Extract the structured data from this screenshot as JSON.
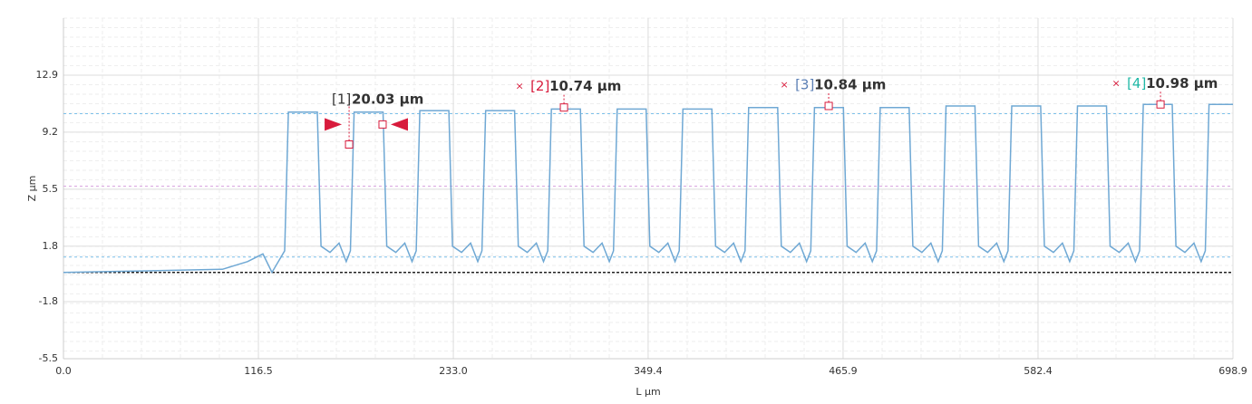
{
  "chart_data": {
    "type": "line",
    "xlabel": "L µm",
    "ylabel": "Z µm",
    "xlim": [
      0,
      698.9
    ],
    "ylim": [
      -5.5,
      16.6
    ],
    "xticks": [
      {
        "value": 0,
        "label": "0.0"
      },
      116.5,
      {
        "value": 233,
        "label": "233.0"
      },
      349.4,
      465.9,
      582.4,
      698.9
    ],
    "yticks": [
      -5.5,
      -1.8,
      1.8,
      5.5,
      9.2,
      12.9
    ],
    "grid": true,
    "series": [
      {
        "color": "#6fa8d4",
        "x": [
          0,
          50,
          95,
          110,
          119.2,
          124.6,
          132.2,
          134.4,
          151.7,
          153.9,
          159.3,
          164.7,
          169.0,
          171.5,
          173.7,
          191.0,
          193.2,
          198.6,
          204.0,
          208.3,
          210.8,
          213.0,
          230.3,
          232.5,
          237.9,
          243.3,
          247.6,
          250.1,
          252.3,
          269.6,
          271.8,
          277.2,
          282.6,
          286.9,
          289.4,
          291.6,
          308.9,
          311.1,
          316.5,
          321.9,
          326.2,
          328.7,
          330.9,
          348.2,
          350.4,
          355.8,
          361.2,
          365.5,
          368.0,
          370.2,
          387.5,
          389.7,
          395.1,
          400.5,
          404.8,
          407.3,
          409.5,
          426.8,
          429.0,
          434.4,
          439.8,
          444.1,
          446.6,
          448.8,
          466.1,
          468.3,
          473.7,
          479.1,
          483.4,
          485.9,
          488.1,
          505.4,
          507.6,
          513.0,
          518.4,
          522.7,
          525.2,
          527.4,
          544.7,
          546.9,
          552.3,
          557.7,
          562.0,
          564.5,
          566.7,
          584.0,
          586.2,
          591.6,
          597.0,
          601.3,
          603.8,
          606.0,
          623.3,
          625.5,
          630.9,
          636.3,
          640.6,
          643.1,
          645.3,
          662.6,
          664.8,
          670.2,
          675.6,
          679.9,
          682.4,
          684.6,
          698.9
        ],
        "values": [
          0.1,
          0.2,
          0.3,
          0.8,
          1.3,
          0.1,
          1.5,
          10.5,
          10.5,
          1.8,
          1.4,
          2.0,
          0.8,
          1.5,
          10.5,
          10.5,
          1.8,
          1.4,
          2.0,
          0.8,
          1.5,
          10.6,
          10.6,
          1.8,
          1.4,
          2.0,
          0.8,
          1.5,
          10.6,
          10.6,
          1.8,
          1.4,
          2.0,
          0.8,
          1.5,
          10.7,
          10.7,
          1.8,
          1.4,
          2.0,
          0.8,
          1.5,
          10.7,
          10.7,
          1.8,
          1.4,
          2.0,
          0.8,
          1.5,
          10.7,
          10.7,
          1.8,
          1.4,
          2.0,
          0.8,
          1.5,
          10.8,
          10.8,
          1.8,
          1.4,
          2.0,
          0.8,
          1.5,
          10.8,
          10.8,
          1.8,
          1.4,
          2.0,
          0.8,
          1.5,
          10.8,
          10.8,
          1.8,
          1.4,
          2.0,
          0.8,
          1.5,
          10.9,
          10.9,
          1.8,
          1.4,
          2.0,
          0.8,
          1.5,
          10.9,
          10.9,
          1.8,
          1.4,
          2.0,
          0.8,
          1.5,
          10.9,
          10.9,
          1.8,
          1.4,
          2.0,
          0.8,
          1.5,
          11.0,
          11.0,
          1.8,
          1.4,
          2.0,
          0.8,
          1.5,
          11.0,
          11.0
        ]
      }
    ],
    "reference_lines": [
      {
        "value": 10.4,
        "color": "#7cc0ea"
      },
      {
        "value": 5.7,
        "color": "#d9a6e0"
      },
      {
        "value": 1.1,
        "color": "#7cc0ea"
      },
      {
        "value": 0.1,
        "color": "#222222"
      }
    ],
    "annotations": [
      {
        "label": "[1]",
        "text": "20.03 µm",
        "color": "#f0a830",
        "at": [
          170.7,
          8.4
        ],
        "end": [
          190.7,
          9.7
        ]
      },
      {
        "label": "[2]",
        "text": "10.74 µm",
        "color": "#d81b3c",
        "at": [
          299.1,
          10.8
        ]
      },
      {
        "label": "[3]",
        "text": "10.84 µm",
        "color": "#5b7fb5",
        "at": [
          457.3,
          10.9
        ]
      },
      {
        "label": "[4]",
        "text": "10.98 µm",
        "color": "#1fb8a6",
        "at": [
          655.6,
          11.0
        ]
      }
    ]
  }
}
